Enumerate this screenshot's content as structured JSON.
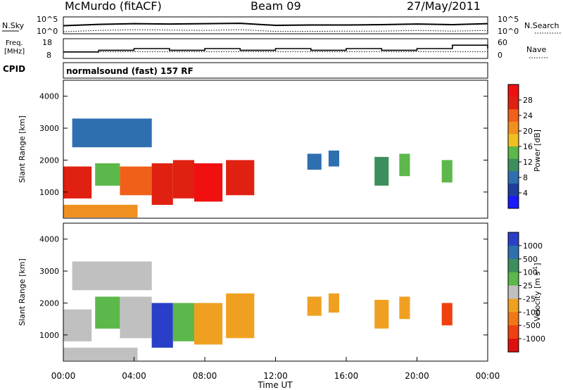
{
  "header": {
    "station": "McMurdo (fitACF)",
    "beam": "Beam 09",
    "date": "27/May/2011"
  },
  "noise_panel": {
    "left_label": "N.Sky",
    "right_label": "N.Search",
    "left_top_tick": "10^5",
    "left_bottom_tick": "10^0",
    "right_top_tick": "10^5",
    "right_bottom_tick": "10^0"
  },
  "freq_panel": {
    "left_label_line1": "Freq.",
    "left_label_line2": "[MHz]",
    "right_label": "Nave",
    "left_ticks": [
      "18",
      "8"
    ],
    "right_ticks": [
      "60",
      "0"
    ]
  },
  "cpid": {
    "label": "CPID",
    "value": "normalsound (fast) 157 RF"
  },
  "power_panel": {
    "ylabel": "Slant Range [km]",
    "yticks": [
      "4000",
      "3000",
      "2000",
      "1000"
    ],
    "colorbar_label": "Power [dB]",
    "colorbar_ticks": [
      "28",
      "24",
      "20",
      "16",
      "12",
      "8",
      "4"
    ],
    "colors": [
      "#1a1aff",
      "#1e3f9e",
      "#2e6fb0",
      "#3c8f5c",
      "#5cb84a",
      "#f0c020",
      "#f09020",
      "#f06018",
      "#e02010",
      "#f01010"
    ]
  },
  "velocity_panel": {
    "ylabel": "Slant Range [km]",
    "yticks": [
      "4000",
      "3000",
      "2000",
      "1000"
    ],
    "colorbar_label": "Velocity [m s",
    "colorbar_label_sup": "-1",
    "colorbar_label_end": "]",
    "colorbar_ticks": [
      "1000",
      "500",
      "100",
      "25",
      "-25",
      "-100",
      "-500",
      "-1000"
    ],
    "colors": [
      "#2a3fc8",
      "#2e6fb0",
      "#3c8f5c",
      "#5cb84a",
      "#c0c0c0",
      "#f0a020",
      "#f07818",
      "#f04010",
      "#e01010"
    ]
  },
  "x_axis": {
    "xlabel": "Time UT",
    "ticks": [
      "00:00",
      "04:00",
      "08:00",
      "12:00",
      "16:00",
      "20:00",
      "00:00"
    ]
  },
  "chart_data": [
    {
      "type": "line",
      "name": "noise",
      "x": [
        0,
        2,
        4,
        6,
        8,
        10,
        12,
        14,
        16,
        18,
        20,
        22,
        24
      ],
      "series": [
        {
          "values": [
            2.4,
            2.8,
            3.0,
            2.9,
            3.0,
            3.1,
            2.5,
            2.6,
            2.6,
            2.7,
            2.9,
            2.7,
            3.0
          ]
        },
        {
          "values": [
            0.6,
            1.0,
            1.2,
            1.1,
            1.0,
            1.2,
            0.7,
            0.7,
            0.8,
            0.8,
            1.0,
            0.8,
            1.0
          ]
        }
      ]
    },
    {
      "type": "line",
      "name": "frequency",
      "x": [
        0,
        2,
        4,
        6,
        8,
        10,
        12,
        14,
        16,
        18,
        20,
        22,
        24
      ],
      "series": [
        {
          "values": [
            11,
            12,
            13,
            12,
            13,
            12,
            13,
            12,
            13,
            12,
            13,
            15,
            13
          ]
        },
        {
          "values": [
            24,
            24,
            24,
            24,
            24,
            24,
            24,
            24,
            24,
            24,
            24,
            24,
            24
          ]
        }
      ]
    },
    {
      "type": "heatmap",
      "name": "power",
      "xlim": [
        0,
        24
      ],
      "ylim": [
        180,
        4500
      ],
      "regions": [
        {
          "t0": 0.0,
          "t1": 1.6,
          "r0": 800,
          "r1": 1800,
          "v": 24
        },
        {
          "t0": 1.8,
          "t1": 3.2,
          "r0": 1200,
          "r1": 1900,
          "v": 14
        },
        {
          "t0": 3.2,
          "t1": 5.0,
          "r0": 900,
          "r1": 1800,
          "v": 22
        },
        {
          "t0": 5.0,
          "t1": 6.2,
          "r0": 600,
          "r1": 1900,
          "v": 26
        },
        {
          "t0": 6.2,
          "t1": 7.4,
          "r0": 800,
          "r1": 2000,
          "v": 24
        },
        {
          "t0": 7.4,
          "t1": 9.0,
          "r0": 700,
          "r1": 1900,
          "v": 28
        },
        {
          "t0": 9.2,
          "t1": 10.8,
          "r0": 900,
          "r1": 2000,
          "v": 26
        },
        {
          "t0": 0.5,
          "t1": 5.0,
          "r0": 2400,
          "r1": 3300,
          "v": 6
        },
        {
          "t0": 0.0,
          "t1": 4.2,
          "r0": 200,
          "r1": 600,
          "v": 18
        },
        {
          "t0": 13.8,
          "t1": 14.6,
          "r0": 1700,
          "r1": 2200,
          "v": 6
        },
        {
          "t0": 15.0,
          "t1": 15.6,
          "r0": 1800,
          "r1": 2300,
          "v": 6
        },
        {
          "t0": 17.6,
          "t1": 18.4,
          "r0": 1200,
          "r1": 2100,
          "v": 10
        },
        {
          "t0": 19.0,
          "t1": 19.6,
          "r0": 1500,
          "r1": 2200,
          "v": 12
        },
        {
          "t0": 21.4,
          "t1": 22.0,
          "r0": 1300,
          "r1": 2000,
          "v": 12
        }
      ]
    },
    {
      "type": "heatmap",
      "name": "velocity",
      "xlim": [
        0,
        24
      ],
      "ylim": [
        180,
        4500
      ],
      "regions": [
        {
          "t0": 0.0,
          "t1": 1.6,
          "r0": 800,
          "r1": 1800,
          "v": 100
        },
        {
          "t0": 1.8,
          "t1": 3.2,
          "r0": 1200,
          "r1": 2200,
          "v": 200
        },
        {
          "t0": 3.2,
          "t1": 5.0,
          "r0": 900,
          "r1": 2200,
          "v": 50
        },
        {
          "t0": 5.0,
          "t1": 6.2,
          "r0": 600,
          "r1": 2000,
          "v": 800
        },
        {
          "t0": 6.2,
          "t1": 7.4,
          "r0": 800,
          "r1": 2000,
          "v": 300
        },
        {
          "t0": 7.4,
          "t1": 9.0,
          "r0": 700,
          "r1": 2000,
          "v": -200
        },
        {
          "t0": 9.2,
          "t1": 10.8,
          "r0": 900,
          "r1": 2300,
          "v": -300
        },
        {
          "t0": 0.5,
          "t1": 5.0,
          "r0": 2400,
          "r1": 3300,
          "v": 10
        },
        {
          "t0": 0.0,
          "t1": 4.2,
          "r0": 200,
          "r1": 600,
          "v": -80
        },
        {
          "t0": 13.8,
          "t1": 14.6,
          "r0": 1600,
          "r1": 2200,
          "v": -200
        },
        {
          "t0": 15.0,
          "t1": 15.6,
          "r0": 1700,
          "r1": 2300,
          "v": -200
        },
        {
          "t0": 17.6,
          "t1": 18.4,
          "r0": 1200,
          "r1": 2100,
          "v": -300
        },
        {
          "t0": 19.0,
          "t1": 19.6,
          "r0": 1500,
          "r1": 2200,
          "v": -300
        },
        {
          "t0": 21.4,
          "t1": 22.0,
          "r0": 1300,
          "r1": 2000,
          "v": -600
        }
      ]
    }
  ]
}
